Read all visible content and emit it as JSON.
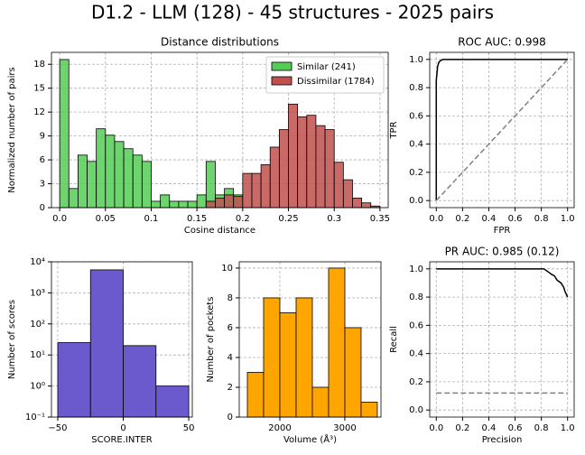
{
  "title": "D1.2 - LLM (128) - 45 structures - 2025 pairs",
  "chart_data": [
    {
      "type": "histogram",
      "title": "Distance distributions",
      "x_label": "Cosine distance",
      "y_label": "Normalized number of pairs",
      "bins": [
        0,
        0.01,
        0.02,
        0.03,
        0.04,
        0.05,
        0.06,
        0.07,
        0.08,
        0.09,
        0.1,
        0.11,
        0.12,
        0.13,
        0.14,
        0.15,
        0.16,
        0.17,
        0.18,
        0.19,
        0.2,
        0.21,
        0.22,
        0.23,
        0.24,
        0.25,
        0.26,
        0.27,
        0.28,
        0.29,
        0.3,
        0.31,
        0.32,
        0.33,
        0.34,
        0.35
      ],
      "series": [
        {
          "name": "Similar (241)",
          "color": "#55cc55",
          "values": [
            18.6,
            2.4,
            6.6,
            5.8,
            9.9,
            9.1,
            8.3,
            7.4,
            6.6,
            5.8,
            0.8,
            1.6,
            0.8,
            0.8,
            0.8,
            1.6,
            5.8,
            1.6,
            2.4,
            1.6,
            0,
            0,
            0,
            0,
            0,
            0,
            0,
            0,
            0,
            0,
            0,
            0,
            0,
            0,
            0
          ]
        },
        {
          "name": "Dissimilar (1784)",
          "color": "#c0504d",
          "values": [
            0,
            0,
            0,
            0,
            0,
            0,
            0,
            0,
            0,
            0,
            0,
            0,
            0,
            0,
            0,
            0,
            0.8,
            1.2,
            1.6,
            1.4,
            4.3,
            4.3,
            5.4,
            7.6,
            9.8,
            13.0,
            11.4,
            11.6,
            10.3,
            9.8,
            5.7,
            3.5,
            1.2,
            0.6,
            0.2
          ]
        }
      ],
      "xlim": [
        -0.009,
        0.359
      ],
      "ylim": [
        0,
        19.5
      ],
      "xticks": [
        {
          "value": 0,
          "label": "0.0"
        },
        0.05,
        0.1,
        0.15,
        0.2,
        0.25,
        0.3,
        0.35
      ],
      "yticks": [
        0,
        3,
        6,
        9,
        12,
        15,
        18
      ],
      "grid": true,
      "legend": "upper right"
    },
    {
      "type": "line",
      "title": "ROC AUC: 0.998",
      "x_label": "FPR",
      "y_label": "TPR",
      "series": [
        {
          "color": "#000000",
          "linestyle": "solid",
          "x": [
            0,
            0,
            0.005,
            0.01,
            0.02,
            0.03,
            0.05,
            1
          ],
          "values": [
            0,
            0.85,
            0.9,
            0.95,
            0.98,
            0.99,
            1,
            1
          ]
        },
        {
          "color": "#808080",
          "linestyle": "dashed",
          "x": [
            0,
            1
          ],
          "values": [
            0,
            1
          ]
        }
      ],
      "xlim": [
        -0.05,
        1.05
      ],
      "ylim": [
        -0.05,
        1.05
      ],
      "xticks": [
        {
          "value": 0,
          "label": "0.0"
        },
        0.2,
        0.4,
        0.6,
        0.8,
        {
          "value": 1,
          "label": "1.0"
        }
      ],
      "yticks": [
        {
          "value": 0,
          "label": "0.0"
        },
        0.2,
        0.4,
        0.6,
        0.8,
        {
          "value": 1,
          "label": "1.0"
        }
      ],
      "grid": true
    },
    {
      "type": "histogram",
      "x_label": "SCORE.INTER",
      "y_label": "Number of scores",
      "log_y": true,
      "bins": [
        -50,
        -25,
        0,
        25,
        50
      ],
      "values": [
        25,
        5500,
        20,
        1
      ],
      "color": "#6a5acd",
      "xlim": [
        -54.8,
        52.7
      ],
      "ylim": [
        0.1,
        10000
      ],
      "xticks": [
        {
          "value": -50,
          "label": "−50"
        },
        0,
        50
      ],
      "yticks": [
        {
          "value": 0.1,
          "label": "10⁻¹"
        },
        {
          "value": 1,
          "label": "10⁰"
        },
        {
          "value": 10,
          "label": "10¹"
        },
        {
          "value": 100,
          "label": "10²"
        },
        {
          "value": 1000,
          "label": "10³"
        },
        {
          "value": 10000,
          "label": "10⁴"
        }
      ],
      "grid": true
    },
    {
      "type": "histogram",
      "x_label": "Volume (Å³)",
      "y_label": "Number of pockets",
      "bins": [
        1500,
        1750,
        2000,
        2250,
        2500,
        2750,
        3000,
        3250,
        3500
      ],
      "values": [
        3,
        8,
        7,
        8,
        2,
        10,
        6,
        1
      ],
      "color": "#ffa500",
      "xlim": [
        1375,
        3556
      ],
      "ylim": [
        0,
        10.42
      ],
      "xticks": [
        2000,
        3000
      ],
      "yticks": [
        0,
        2,
        4,
        6,
        8,
        10
      ],
      "grid": true
    },
    {
      "type": "line",
      "title": "PR AUC: 0.985 (0.12)",
      "x_label": "Precision",
      "y_label": "Recall",
      "series": [
        {
          "color": "#000000",
          "linestyle": "solid",
          "x": [
            0,
            0.82,
            0.85,
            0.88,
            0.9,
            0.92,
            0.95,
            0.97,
            0.98,
            0.99,
            1
          ],
          "values": [
            1,
            1,
            0.98,
            0.96,
            0.95,
            0.92,
            0.9,
            0.87,
            0.84,
            0.82,
            0.8
          ]
        },
        {
          "color": "#808080",
          "linestyle": "dashed",
          "x": [
            0,
            1
          ],
          "values": [
            0.12,
            0.12
          ]
        }
      ],
      "xlim": [
        -0.05,
        1.05
      ],
      "ylim": [
        -0.05,
        1.05
      ],
      "xticks": [
        {
          "value": 0,
          "label": "0.0"
        },
        0.2,
        0.4,
        0.6,
        0.8,
        {
          "value": 1,
          "label": "1.0"
        }
      ],
      "yticks": [
        {
          "value": 0,
          "label": "0.0"
        },
        0.2,
        0.4,
        0.6,
        0.8,
        {
          "value": 1,
          "label": "1.0"
        }
      ],
      "grid": true
    }
  ]
}
